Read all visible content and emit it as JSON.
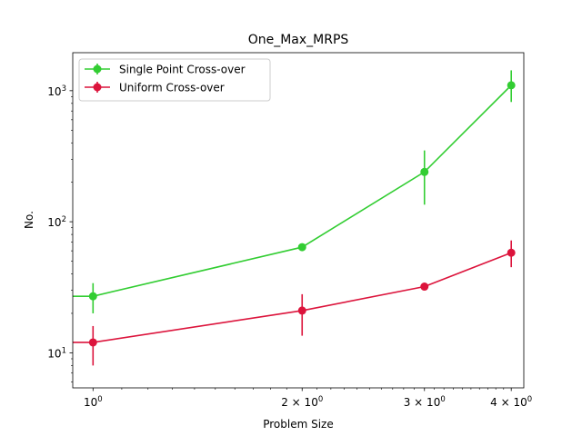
{
  "chart_data": {
    "type": "line",
    "title": "One_Max_MRPS",
    "xlabel": "Problem Size",
    "ylabel": "No.",
    "xscale": "log",
    "yscale": "log",
    "xlim": [
      0.935,
      4.17
    ],
    "ylim": [
      5.4,
      1950
    ],
    "grid": false,
    "legend_position": "top-left",
    "x_ticks": [
      {
        "value": 1,
        "base": "10",
        "exp": "0"
      },
      {
        "value": 2,
        "base": "2 × 10",
        "exp": "0"
      },
      {
        "value": 3,
        "base": "3 × 10",
        "exp": "0"
      },
      {
        "value": 4,
        "base": "4 × 10",
        "exp": "0"
      }
    ],
    "y_ticks": [
      {
        "value": 10,
        "base": "10",
        "exp": "1"
      },
      {
        "value": 100,
        "base": "10",
        "exp": "2"
      },
      {
        "value": 1000,
        "base": "10",
        "exp": "3"
      }
    ],
    "series": [
      {
        "name": "Single Point Cross-over",
        "color": "#32cd32",
        "x": [
          1,
          2,
          3,
          4
        ],
        "y": [
          27,
          64,
          240,
          1100
        ],
        "yerr_low": [
          20,
          63,
          135,
          820
        ],
        "yerr_high": [
          34,
          65,
          350,
          1430
        ]
      },
      {
        "name": "Uniform Cross-over",
        "color": "#dc143c",
        "x": [
          1,
          2,
          3,
          4
        ],
        "y": [
          12,
          21,
          32,
          58
        ],
        "yerr_low": [
          8,
          13.5,
          31,
          45
        ],
        "yerr_high": [
          16,
          28,
          33,
          72
        ]
      }
    ]
  }
}
